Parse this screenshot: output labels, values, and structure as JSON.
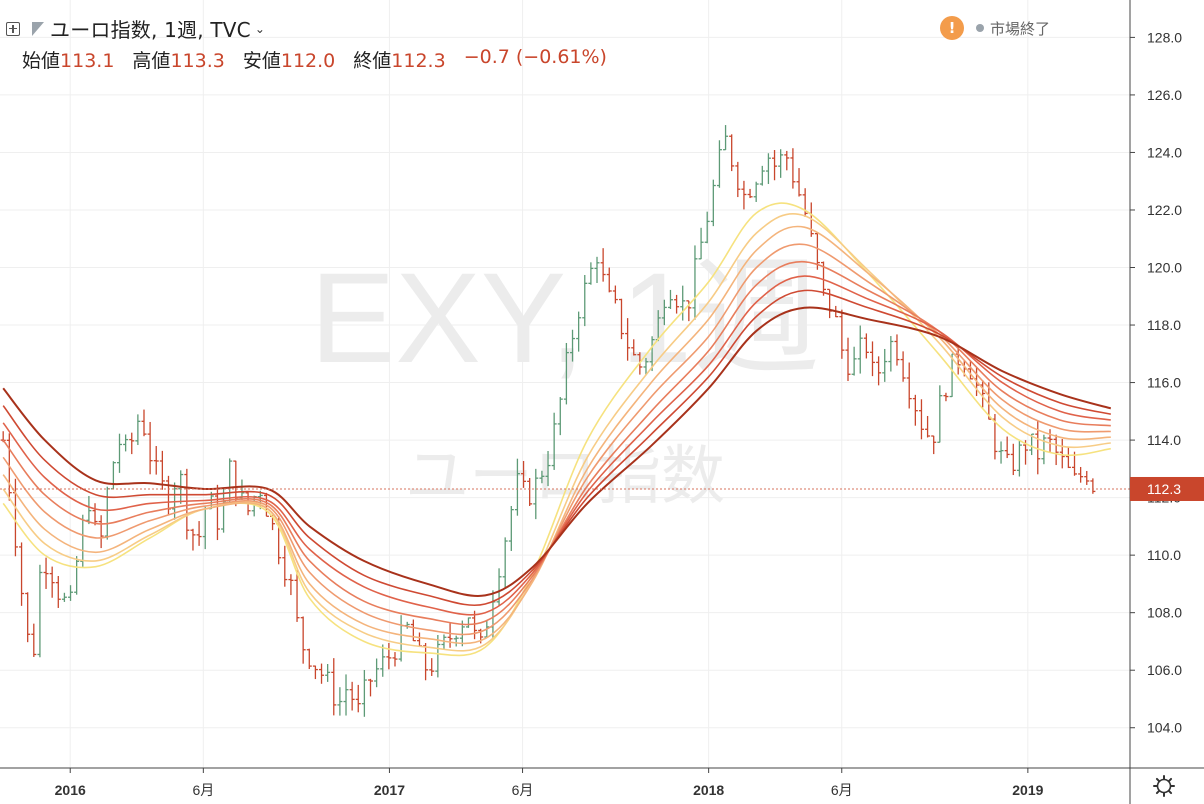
{
  "header": {
    "symbol_title": "ユーロ指数, 1週, TVC",
    "ohlc": [
      {
        "label": "始値",
        "value": "113.1"
      },
      {
        "label": "高値",
        "value": "113.3"
      },
      {
        "label": "安値",
        "value": "112.0"
      },
      {
        "label": "終値",
        "value": "112.3"
      }
    ],
    "change": "−0.7 (−0.61%)",
    "market_status": "市場終了"
  },
  "watermark": {
    "line1": "EXY, 1週",
    "line2": "ユーロ指数"
  },
  "colors": {
    "up": "#5d9a76",
    "down": "#c9462c",
    "price_label": "#c9462c"
  },
  "chart_data": {
    "type": "line",
    "title": "ユーロ指数, 1週, TVC",
    "x_ticks": [
      {
        "label": "2016",
        "date": 2016.0
      },
      {
        "label": "6月",
        "date": 2016.417
      },
      {
        "label": "2017",
        "date": 2017.0
      },
      {
        "label": "6月",
        "date": 2017.417
      },
      {
        "label": "2018",
        "date": 2018.0
      },
      {
        "label": "6月",
        "date": 2018.417
      },
      {
        "label": "2019",
        "date": 2019.0
      }
    ],
    "y_ticks": [
      "104.0",
      "106.0",
      "108.0",
      "110.0",
      "112.0",
      "114.0",
      "116.0",
      "118.0",
      "120.0",
      "122.0",
      "124.0",
      "126.0",
      "128.0"
    ],
    "ylim": [
      102.6,
      129.3
    ],
    "xlim": [
      2015.78,
      2019.32
    ],
    "last_price": "112.3",
    "price_path": [
      [
        2015.79,
        114.0
      ],
      [
        2015.82,
        111.5
      ],
      [
        2015.85,
        108.5
      ],
      [
        2015.88,
        106.0
      ],
      [
        2015.91,
        110.0
      ],
      [
        2015.94,
        109.5
      ],
      [
        2015.97,
        108.5
      ],
      [
        2016.0,
        108.2
      ],
      [
        2016.03,
        110.5
      ],
      [
        2016.06,
        112.0
      ],
      [
        2016.09,
        110.0
      ],
      [
        2016.12,
        112.5
      ],
      [
        2016.15,
        114.0
      ],
      [
        2016.18,
        113.5
      ],
      [
        2016.22,
        115.0
      ],
      [
        2016.25,
        113.5
      ],
      [
        2016.28,
        112.5
      ],
      [
        2016.31,
        112.0
      ],
      [
        2016.34,
        113.0
      ],
      [
        2016.37,
        111.0
      ],
      [
        2016.4,
        110.5
      ],
      [
        2016.43,
        112.0
      ],
      [
        2016.47,
        111.0
      ],
      [
        2016.5,
        113.0
      ],
      [
        2016.53,
        112.0
      ],
      [
        2016.56,
        111.5
      ],
      [
        2016.59,
        112.5
      ],
      [
        2016.62,
        111.5
      ],
      [
        2016.66,
        110.0
      ],
      [
        2016.69,
        109.0
      ],
      [
        2016.72,
        107.0
      ],
      [
        2016.75,
        106.5
      ],
      [
        2016.78,
        106.0
      ],
      [
        2016.81,
        105.5
      ],
      [
        2016.84,
        104.8
      ],
      [
        2016.87,
        105.5
      ],
      [
        2016.9,
        104.5
      ],
      [
        2016.93,
        105.5
      ],
      [
        2016.96,
        106.0
      ],
      [
        2017.0,
        106.5
      ],
      [
        2017.03,
        107.0
      ],
      [
        2017.06,
        107.5
      ],
      [
        2017.09,
        106.5
      ],
      [
        2017.12,
        106.0
      ],
      [
        2017.15,
        106.5
      ],
      [
        2017.18,
        107.0
      ],
      [
        2017.21,
        107.5
      ],
      [
        2017.25,
        108.0
      ],
      [
        2017.28,
        106.5
      ],
      [
        2017.31,
        108.0
      ],
      [
        2017.34,
        109.5
      ],
      [
        2017.37,
        111.0
      ],
      [
        2017.4,
        112.5
      ],
      [
        2017.43,
        112.0
      ],
      [
        2017.46,
        112.5
      ],
      [
        2017.5,
        113.5
      ],
      [
        2017.53,
        115.0
      ],
      [
        2017.56,
        117.0
      ],
      [
        2017.59,
        118.5
      ],
      [
        2017.62,
        119.5
      ],
      [
        2017.65,
        120.5
      ],
      [
        2017.68,
        119.0
      ],
      [
        2017.71,
        118.5
      ],
      [
        2017.74,
        117.5
      ],
      [
        2017.78,
        116.5
      ],
      [
        2017.81,
        117.0
      ],
      [
        2017.84,
        118.0
      ],
      [
        2017.87,
        119.5
      ],
      [
        2017.9,
        119.0
      ],
      [
        2017.93,
        118.5
      ],
      [
        2017.96,
        120.0
      ],
      [
        2017.99,
        121.5
      ],
      [
        2018.02,
        123.0
      ],
      [
        2018.05,
        124.5
      ],
      [
        2018.08,
        123.5
      ],
      [
        2018.11,
        122.5
      ],
      [
        2018.14,
        123.0
      ],
      [
        2018.18,
        124.0
      ],
      [
        2018.21,
        123.5
      ],
      [
        2018.24,
        124.0
      ],
      [
        2018.27,
        123.0
      ],
      [
        2018.3,
        122.0
      ],
      [
        2018.33,
        120.5
      ],
      [
        2018.36,
        119.0
      ],
      [
        2018.39,
        118.5
      ],
      [
        2018.42,
        117.0
      ],
      [
        2018.45,
        116.5
      ],
      [
        2018.49,
        117.5
      ],
      [
        2018.52,
        116.0
      ],
      [
        2018.55,
        117.0
      ],
      [
        2018.58,
        117.5
      ],
      [
        2018.61,
        116.5
      ],
      [
        2018.64,
        115.5
      ],
      [
        2018.67,
        114.5
      ],
      [
        2018.7,
        114.0
      ],
      [
        2018.73,
        115.5
      ],
      [
        2018.76,
        116.5
      ],
      [
        2018.79,
        117.0
      ],
      [
        2018.82,
        116.5
      ],
      [
        2018.85,
        115.5
      ],
      [
        2018.88,
        114.5
      ],
      [
        2018.91,
        113.5
      ],
      [
        2018.94,
        113.0
      ],
      [
        2018.97,
        113.5
      ],
      [
        2019.0,
        114.0
      ],
      [
        2019.03,
        113.5
      ],
      [
        2019.06,
        114.0
      ],
      [
        2019.09,
        113.5
      ],
      [
        2019.12,
        113.0
      ],
      [
        2019.15,
        112.5
      ],
      [
        2019.18,
        113.0
      ],
      [
        2019.21,
        112.3
      ]
    ],
    "ema_series": [
      {
        "start": [
          2015.79,
          115.8
        ],
        "color": "#a8321b",
        "points": [
          [
            2015.79,
            115.8
          ],
          [
            2015.92,
            114.0
          ],
          [
            2016.08,
            112.6
          ],
          [
            2016.25,
            112.5
          ],
          [
            2016.42,
            112.3
          ],
          [
            2016.62,
            112.3
          ],
          [
            2016.75,
            111.0
          ],
          [
            2016.92,
            109.8
          ],
          [
            2017.12,
            109.0
          ],
          [
            2017.3,
            108.6
          ],
          [
            2017.45,
            109.6
          ],
          [
            2017.62,
            111.8
          ],
          [
            2017.82,
            113.8
          ],
          [
            2018.0,
            115.8
          ],
          [
            2018.15,
            117.8
          ],
          [
            2018.3,
            118.6
          ],
          [
            2018.5,
            118.2
          ],
          [
            2018.72,
            117.6
          ],
          [
            2018.92,
            116.4
          ],
          [
            2019.1,
            115.6
          ],
          [
            2019.26,
            115.1
          ]
        ]
      },
      {
        "start": [
          2015.79,
          115.2
        ],
        "color": "#cf4a33",
        "points": [
          [
            2015.79,
            115.2
          ],
          [
            2015.92,
            113.3
          ],
          [
            2016.08,
            112.1
          ],
          [
            2016.25,
            112.1
          ],
          [
            2016.42,
            112.1
          ],
          [
            2016.62,
            112.1
          ],
          [
            2016.75,
            110.6
          ],
          [
            2016.92,
            109.3
          ],
          [
            2017.12,
            108.6
          ],
          [
            2017.3,
            108.3
          ],
          [
            2017.45,
            109.5
          ],
          [
            2017.62,
            112.0
          ],
          [
            2017.82,
            114.2
          ],
          [
            2018.0,
            116.2
          ],
          [
            2018.15,
            118.3
          ],
          [
            2018.3,
            119.2
          ],
          [
            2018.5,
            118.6
          ],
          [
            2018.72,
            117.7
          ],
          [
            2018.92,
            116.2
          ],
          [
            2019.1,
            115.3
          ],
          [
            2019.26,
            114.9
          ]
        ]
      },
      {
        "start": [
          2015.79,
          114.6
        ],
        "color": "#e0624a",
        "points": [
          [
            2015.79,
            114.6
          ],
          [
            2015.92,
            112.7
          ],
          [
            2016.08,
            111.6
          ],
          [
            2016.25,
            111.8
          ],
          [
            2016.42,
            111.9
          ],
          [
            2016.62,
            111.9
          ],
          [
            2016.75,
            110.2
          ],
          [
            2016.92,
            108.9
          ],
          [
            2017.12,
            108.2
          ],
          [
            2017.3,
            108.0
          ],
          [
            2017.45,
            109.4
          ],
          [
            2017.62,
            112.2
          ],
          [
            2017.82,
            114.6
          ],
          [
            2018.0,
            116.6
          ],
          [
            2018.15,
            118.8
          ],
          [
            2018.3,
            119.7
          ],
          [
            2018.5,
            118.9
          ],
          [
            2018.72,
            117.8
          ],
          [
            2018.92,
            116.0
          ],
          [
            2019.1,
            115.0
          ],
          [
            2019.26,
            114.7
          ]
        ]
      },
      {
        "start": [
          2015.79,
          114.0
        ],
        "color": "#e87d5c",
        "points": [
          [
            2015.79,
            114.0
          ],
          [
            2015.92,
            112.1
          ],
          [
            2016.08,
            111.1
          ],
          [
            2016.25,
            111.5
          ],
          [
            2016.42,
            111.8
          ],
          [
            2016.62,
            111.8
          ],
          [
            2016.75,
            109.8
          ],
          [
            2016.92,
            108.4
          ],
          [
            2017.12,
            107.8
          ],
          [
            2017.3,
            107.7
          ],
          [
            2017.45,
            109.3
          ],
          [
            2017.62,
            112.4
          ],
          [
            2017.82,
            115.0
          ],
          [
            2018.0,
            117.1
          ],
          [
            2018.15,
            119.4
          ],
          [
            2018.3,
            120.2
          ],
          [
            2018.5,
            119.2
          ],
          [
            2018.72,
            117.8
          ],
          [
            2018.92,
            115.7
          ],
          [
            2019.1,
            114.7
          ],
          [
            2019.26,
            114.5
          ]
        ]
      },
      {
        "start": [
          2015.79,
          113.4
        ],
        "color": "#ef9a6f",
        "points": [
          [
            2015.79,
            113.4
          ],
          [
            2015.92,
            111.5
          ],
          [
            2016.08,
            110.6
          ],
          [
            2016.25,
            111.2
          ],
          [
            2016.42,
            111.7
          ],
          [
            2016.62,
            111.7
          ],
          [
            2016.75,
            109.4
          ],
          [
            2016.92,
            108.0
          ],
          [
            2017.12,
            107.4
          ],
          [
            2017.3,
            107.4
          ],
          [
            2017.45,
            109.2
          ],
          [
            2017.62,
            112.7
          ],
          [
            2017.82,
            115.5
          ],
          [
            2018.0,
            117.6
          ],
          [
            2018.15,
            120.0
          ],
          [
            2018.3,
            120.8
          ],
          [
            2018.5,
            119.5
          ],
          [
            2018.72,
            117.7
          ],
          [
            2018.92,
            115.4
          ],
          [
            2019.1,
            114.4
          ],
          [
            2019.26,
            114.3
          ]
        ]
      },
      {
        "start": [
          2015.79,
          112.8
        ],
        "color": "#f4b47c",
        "points": [
          [
            2015.79,
            112.8
          ],
          [
            2015.92,
            110.9
          ],
          [
            2016.08,
            110.1
          ],
          [
            2016.25,
            110.9
          ],
          [
            2016.42,
            111.6
          ],
          [
            2016.62,
            111.6
          ],
          [
            2016.75,
            109.0
          ],
          [
            2016.92,
            107.6
          ],
          [
            2017.12,
            107.1
          ],
          [
            2017.3,
            107.1
          ],
          [
            2017.45,
            109.1
          ],
          [
            2017.62,
            113.0
          ],
          [
            2017.82,
            116.0
          ],
          [
            2018.0,
            118.2
          ],
          [
            2018.15,
            120.6
          ],
          [
            2018.3,
            121.4
          ],
          [
            2018.5,
            119.8
          ],
          [
            2018.72,
            117.6
          ],
          [
            2018.92,
            115.1
          ],
          [
            2019.1,
            114.1
          ],
          [
            2019.26,
            114.1
          ]
        ]
      },
      {
        "start": [
          2015.79,
          112.3
        ],
        "color": "#f7cc86",
        "points": [
          [
            2015.79,
            112.3
          ],
          [
            2015.92,
            110.4
          ],
          [
            2016.08,
            109.8
          ],
          [
            2016.25,
            110.7
          ],
          [
            2016.42,
            111.6
          ],
          [
            2016.62,
            111.6
          ],
          [
            2016.75,
            108.7
          ],
          [
            2016.92,
            107.3
          ],
          [
            2017.12,
            106.8
          ],
          [
            2017.3,
            106.9
          ],
          [
            2017.45,
            109.2
          ],
          [
            2017.62,
            113.4
          ],
          [
            2017.82,
            116.5
          ],
          [
            2018.0,
            118.8
          ],
          [
            2018.15,
            121.2
          ],
          [
            2018.3,
            121.8
          ],
          [
            2018.5,
            119.9
          ],
          [
            2018.72,
            117.4
          ],
          [
            2018.92,
            114.8
          ],
          [
            2019.1,
            113.8
          ],
          [
            2019.26,
            113.9
          ]
        ]
      },
      {
        "start": [
          2015.79,
          111.8
        ],
        "color": "#f6e27f",
        "points": [
          [
            2015.79,
            111.8
          ],
          [
            2015.92,
            110.0
          ],
          [
            2016.08,
            109.6
          ],
          [
            2016.25,
            110.6
          ],
          [
            2016.42,
            111.6
          ],
          [
            2016.62,
            111.5
          ],
          [
            2016.75,
            108.5
          ],
          [
            2016.92,
            107.0
          ],
          [
            2017.12,
            106.6
          ],
          [
            2017.3,
            106.8
          ],
          [
            2017.45,
            109.4
          ],
          [
            2017.62,
            114.0
          ],
          [
            2017.82,
            117.2
          ],
          [
            2018.0,
            119.5
          ],
          [
            2018.15,
            121.9
          ],
          [
            2018.3,
            122.0
          ],
          [
            2018.5,
            119.8
          ],
          [
            2018.72,
            117.0
          ],
          [
            2018.92,
            114.4
          ],
          [
            2019.1,
            113.5
          ],
          [
            2019.26,
            113.7
          ]
        ]
      }
    ]
  }
}
